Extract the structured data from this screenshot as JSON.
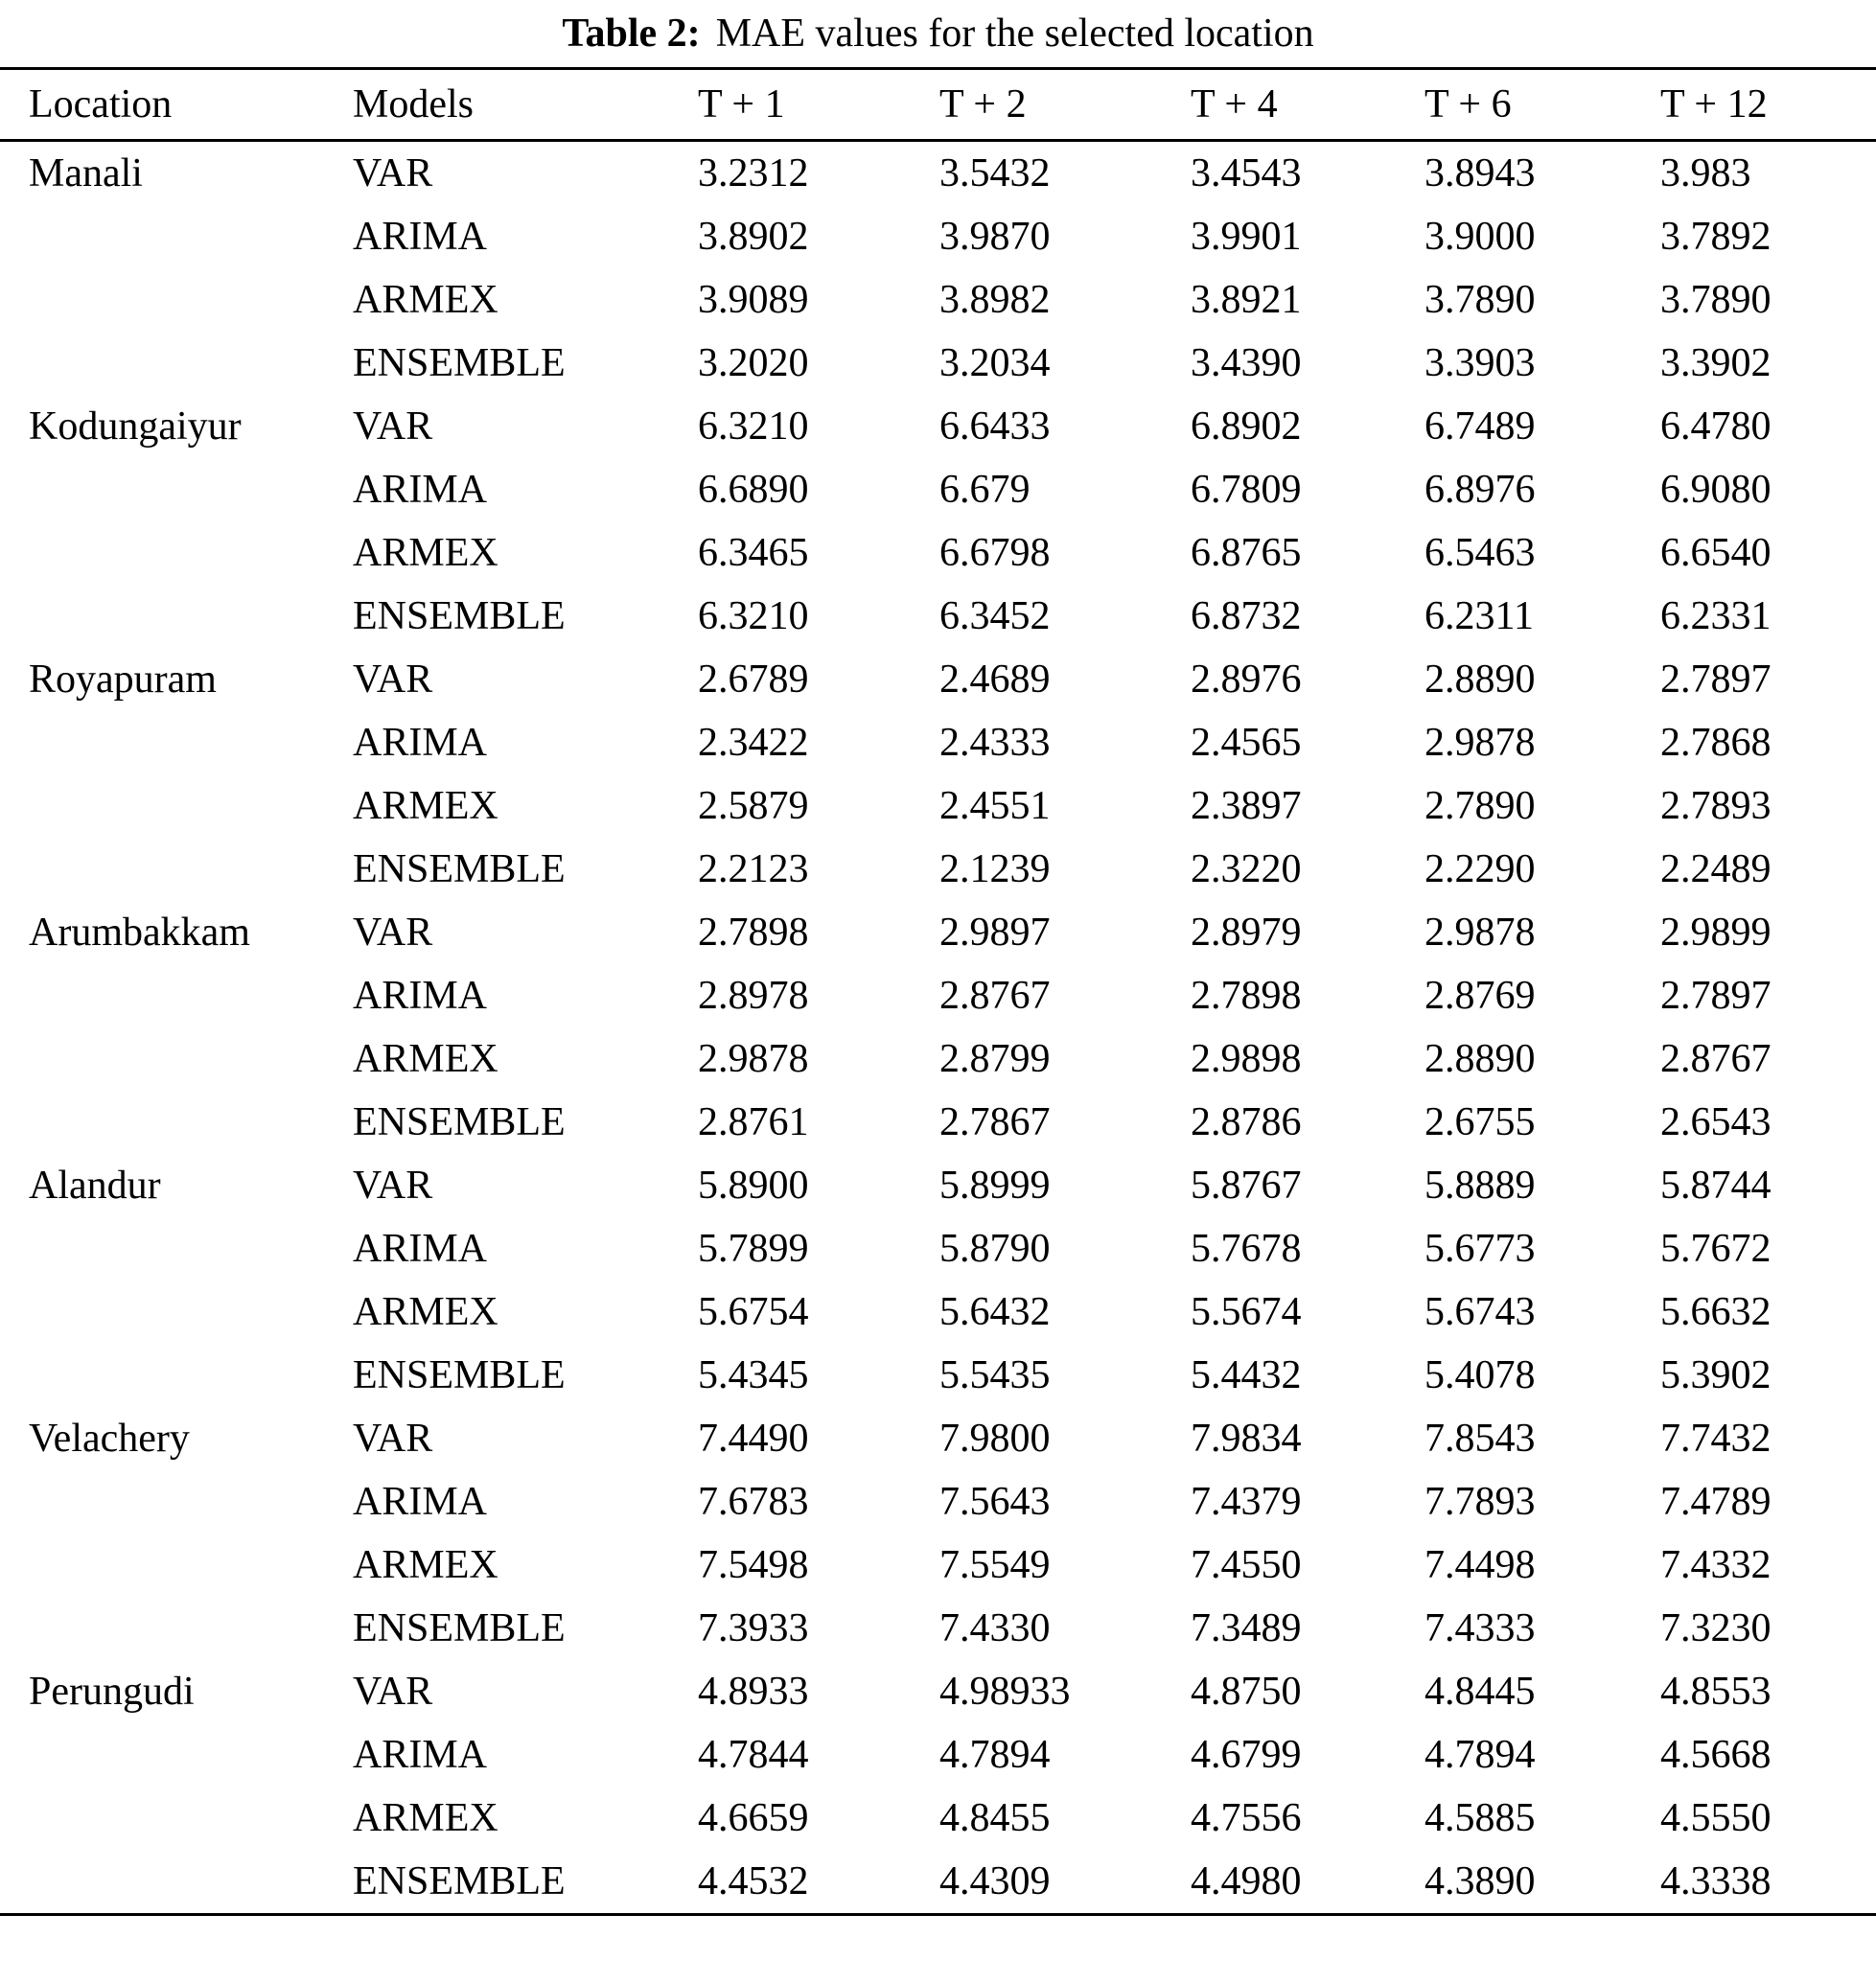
{
  "title": {
    "label": "Table 2:",
    "text": "MAE values for the selected location"
  },
  "table": {
    "columns": [
      "Location",
      "Models",
      "T + 1",
      "T + 2",
      "T + 4",
      "T + 6",
      "T + 12"
    ],
    "groups": [
      {
        "location": "Manali",
        "rows": [
          {
            "model": "VAR",
            "values": [
              "3.2312",
              "3.5432",
              "3.4543",
              "3.8943",
              "3.983"
            ]
          },
          {
            "model": "ARIMA",
            "values": [
              "3.8902",
              "3.9870",
              "3.9901",
              "3.9000",
              "3.7892"
            ]
          },
          {
            "model": "ARMEX",
            "values": [
              "3.9089",
              "3.8982",
              "3.8921",
              "3.7890",
              "3.7890"
            ]
          },
          {
            "model": "ENSEMBLE",
            "values": [
              "3.2020",
              "3.2034",
              "3.4390",
              "3.3903",
              "3.3902"
            ]
          }
        ]
      },
      {
        "location": "Kodungaiyur",
        "rows": [
          {
            "model": "VAR",
            "values": [
              "6.3210",
              "6.6433",
              "6.8902",
              "6.7489",
              "6.4780"
            ]
          },
          {
            "model": "ARIMA",
            "values": [
              "6.6890",
              "6.679",
              "6.7809",
              "6.8976",
              "6.9080"
            ]
          },
          {
            "model": "ARMEX",
            "values": [
              "6.3465",
              "6.6798",
              "6.8765",
              "6.5463",
              "6.6540"
            ]
          },
          {
            "model": "ENSEMBLE",
            "values": [
              "6.3210",
              "6.3452",
              "6.8732",
              "6.2311",
              "6.2331"
            ]
          }
        ]
      },
      {
        "location": "Royapuram",
        "rows": [
          {
            "model": "VAR",
            "values": [
              "2.6789",
              "2.4689",
              "2.8976",
              "2.8890",
              "2.7897"
            ]
          },
          {
            "model": "ARIMA",
            "values": [
              "2.3422",
              "2.4333",
              "2.4565",
              "2.9878",
              "2.7868"
            ]
          },
          {
            "model": "ARMEX",
            "values": [
              "2.5879",
              "2.4551",
              "2.3897",
              "2.7890",
              "2.7893"
            ]
          },
          {
            "model": "ENSEMBLE",
            "values": [
              "2.2123",
              "2.1239",
              "2.3220",
              "2.2290",
              "2.2489"
            ]
          }
        ]
      },
      {
        "location": "Arumbakkam",
        "rows": [
          {
            "model": "VAR",
            "values": [
              "2.7898",
              "2.9897",
              "2.8979",
              "2.9878",
              "2.9899"
            ]
          },
          {
            "model": "ARIMA",
            "values": [
              "2.8978",
              "2.8767",
              "2.7898",
              "2.8769",
              "2.7897"
            ]
          },
          {
            "model": "ARMEX",
            "values": [
              "2.9878",
              "2.8799",
              "2.9898",
              "2.8890",
              "2.8767"
            ]
          },
          {
            "model": "ENSEMBLE",
            "values": [
              "2.8761",
              "2.7867",
              "2.8786",
              "2.6755",
              "2.6543"
            ]
          }
        ]
      },
      {
        "location": "Alandur",
        "rows": [
          {
            "model": "VAR",
            "values": [
              "5.8900",
              "5.8999",
              "5.8767",
              "5.8889",
              "5.8744"
            ]
          },
          {
            "model": "ARIMA",
            "values": [
              "5.7899",
              "5.8790",
              "5.7678",
              "5.6773",
              "5.7672"
            ]
          },
          {
            "model": "ARMEX",
            "values": [
              "5.6754",
              "5.6432",
              "5.5674",
              "5.6743",
              "5.6632"
            ]
          },
          {
            "model": "ENSEMBLE",
            "values": [
              "5.4345",
              "5.5435",
              "5.4432",
              "5.4078",
              "5.3902"
            ]
          }
        ]
      },
      {
        "location": "Velachery",
        "rows": [
          {
            "model": "VAR",
            "values": [
              "7.4490",
              "7.9800",
              "7.9834",
              "7.8543",
              "7.7432"
            ]
          },
          {
            "model": "ARIMA",
            "values": [
              "7.6783",
              "7.5643",
              "7.4379",
              "7.7893",
              "7.4789"
            ]
          },
          {
            "model": "ARMEX",
            "values": [
              "7.5498",
              "7.5549",
              "7.4550",
              "7.4498",
              "7.4332"
            ]
          },
          {
            "model": "ENSEMBLE",
            "values": [
              "7.3933",
              "7.4330",
              "7.3489",
              "7.4333",
              "7.3230"
            ]
          }
        ]
      },
      {
        "location": "Perungudi",
        "rows": [
          {
            "model": "VAR",
            "values": [
              "4.8933",
              "4.98933",
              "4.8750",
              "4.8445",
              "4.8553"
            ]
          },
          {
            "model": "ARIMA",
            "values": [
              "4.7844",
              "4.7894",
              "4.6799",
              "4.7894",
              "4.5668"
            ]
          },
          {
            "model": "ARMEX",
            "values": [
              "4.6659",
              "4.8455",
              "4.7556",
              "4.5885",
              "4.5550"
            ]
          },
          {
            "model": "ENSEMBLE",
            "values": [
              "4.4532",
              "4.4309",
              "4.4980",
              "4.3890",
              "4.3338"
            ]
          }
        ]
      }
    ]
  }
}
